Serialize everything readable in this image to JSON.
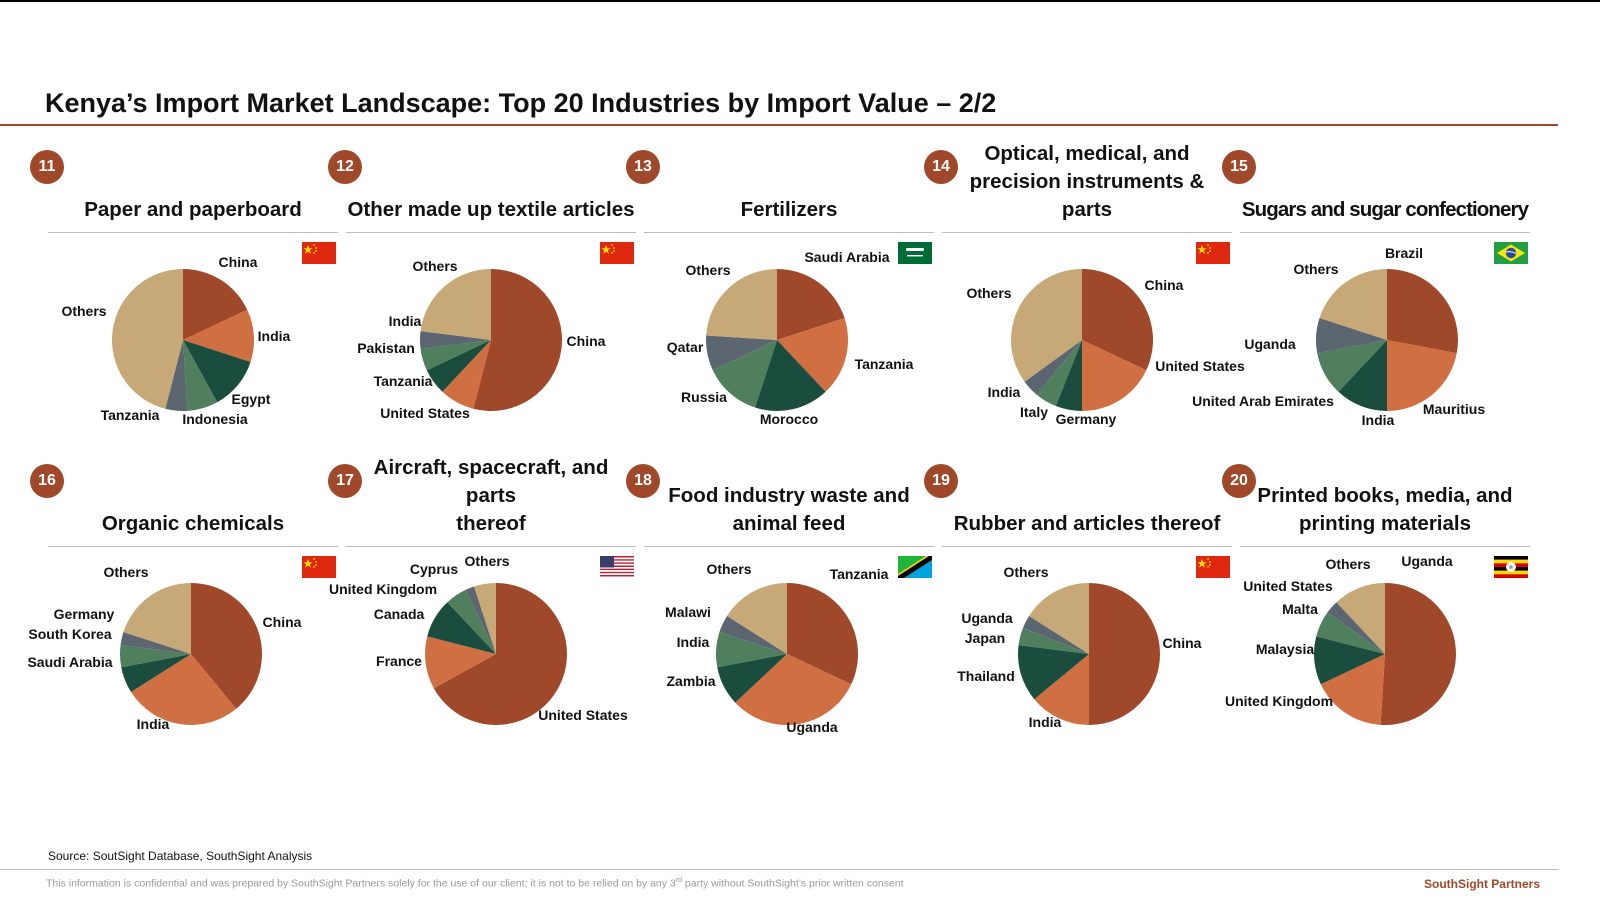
{
  "title": "Kenya’s Import Market Landscape: Top 20 Industries by Import Value – 2/2",
  "colors": {
    "accent": "#A0482A",
    "slices": [
      "#A0482A",
      "#D07042",
      "#1B4D3E",
      "#4F7F5C",
      "#5B6670",
      "#C7A978"
    ]
  },
  "source": "Source: SoutSight Database, SouthSight Analysis",
  "confidential": {
    "pre": "This information is confidential and was prepared by SouthSight Partners solely for the use of our client; it is not to be relied on by any 3",
    "sup": "rd",
    "post": " party without SouthSight’s prior written consent"
  },
  "brand": "SouthSight Partners",
  "chart_data": [
    {
      "type": "pie",
      "number": "11",
      "title": [
        "Paper and paperboard"
      ],
      "flag": "china",
      "labels": [
        "China",
        "India",
        "Egypt",
        "Indonesia",
        "Tanzania",
        "Others"
      ],
      "values": [
        18,
        12,
        12,
        7,
        5,
        46
      ]
    },
    {
      "type": "pie",
      "number": "12",
      "title": [
        "Other made up textile articles"
      ],
      "flag": "china",
      "labels": [
        "China",
        "United States",
        "Tanzania",
        "Pakistan",
        "India",
        "Others"
      ],
      "values": [
        54,
        8,
        6,
        5,
        4,
        23
      ]
    },
    {
      "type": "pie",
      "number": "13",
      "title": [
        "Fertilizers"
      ],
      "flag": "saudi",
      "labels": [
        "Saudi Arabia",
        "Tanzania",
        "Morocco",
        "Russia",
        "Qatar",
        "Others"
      ],
      "values": [
        20,
        18,
        17,
        13,
        8,
        24
      ]
    },
    {
      "type": "pie",
      "number": "14",
      "title": [
        "Optical, medical, and",
        "precision instruments & parts"
      ],
      "flag": "china",
      "labels": [
        "China",
        "United States",
        "Germany",
        "Italy",
        "India",
        "Others"
      ],
      "values": [
        32,
        18,
        6,
        5,
        4,
        35
      ]
    },
    {
      "type": "pie",
      "number": "15",
      "title": [
        "Sugars and sugar confectionery"
      ],
      "flag": "brazil",
      "labels": [
        "Brazil",
        "Mauritius",
        "India",
        "United Arab Emirates",
        "Uganda",
        "Others"
      ],
      "values": [
        28,
        22,
        12,
        10,
        8,
        20
      ]
    },
    {
      "type": "pie",
      "number": "16",
      "title": [
        "Organic chemicals"
      ],
      "flag": "china",
      "labels": [
        "China",
        "India",
        "Saudi Arabia",
        "South Korea",
        "Germany",
        "Others"
      ],
      "values": [
        39,
        27,
        6,
        5,
        3,
        20
      ]
    },
    {
      "type": "pie",
      "number": "17",
      "title": [
        "Aircraft, spacecraft, and parts",
        "thereof"
      ],
      "flag": "usa",
      "labels": [
        "United States",
        "France",
        "Canada",
        "United Kingdom",
        "Cyprus",
        "Others"
      ],
      "values": [
        67,
        12,
        9,
        5,
        2,
        5
      ]
    },
    {
      "type": "pie",
      "number": "18",
      "title": [
        "Food industry waste and",
        "animal feed"
      ],
      "flag": "tanzania",
      "labels": [
        "Tanzania",
        "Uganda",
        "Zambia",
        "India",
        "Malawi",
        "Others"
      ],
      "values": [
        32,
        31,
        9,
        8,
        4,
        16
      ]
    },
    {
      "type": "pie",
      "number": "19",
      "title": [
        "Rubber and articles thereof"
      ],
      "flag": "china",
      "labels": [
        "China",
        "India",
        "Thailand",
        "Japan",
        "Uganda",
        "Others"
      ],
      "values": [
        50,
        14,
        13,
        4,
        3,
        16
      ]
    },
    {
      "type": "pie",
      "number": "20",
      "title": [
        "Printed books, media, and",
        "printing materials"
      ],
      "flag": "uganda",
      "labels": [
        "Uganda",
        "United Kingdom",
        "Malaysia",
        "Malta",
        "United States",
        "Others"
      ],
      "values": [
        51,
        17,
        11,
        6,
        3,
        12
      ]
    }
  ]
}
